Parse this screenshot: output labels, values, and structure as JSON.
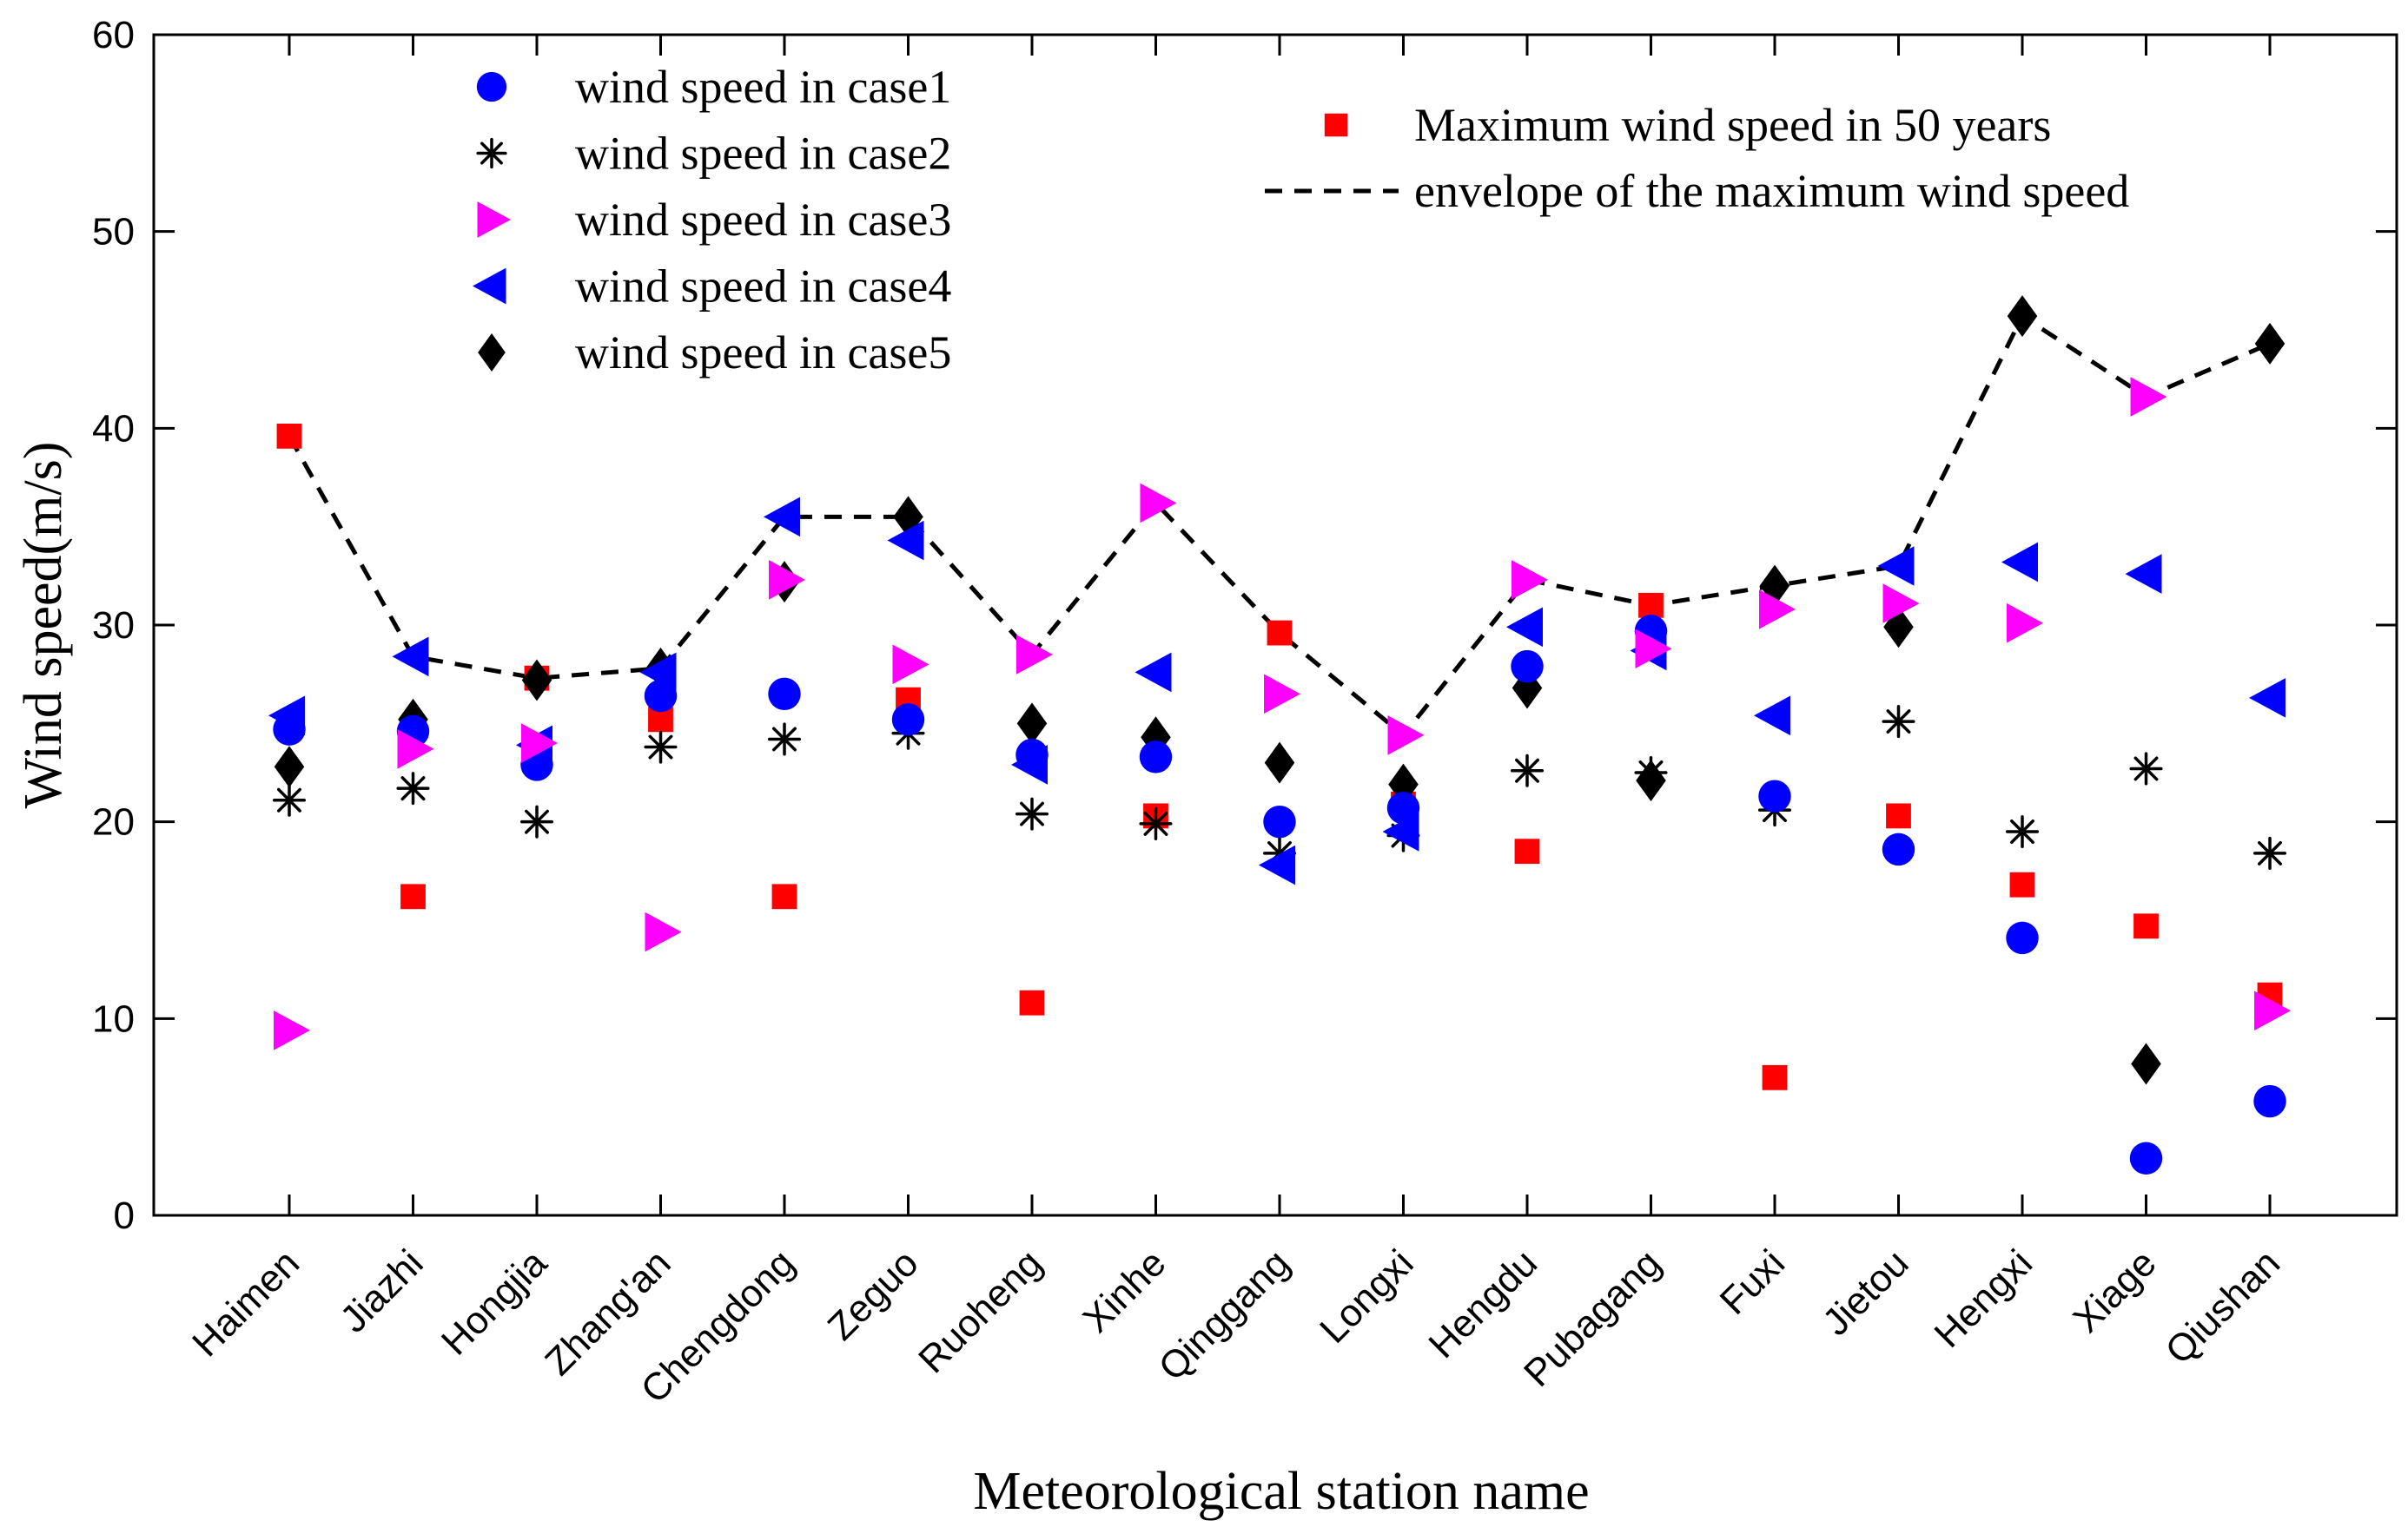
{
  "chart_data": {
    "type": "scatter",
    "xlabel": "Meteorological station name",
    "ylabel": "Wind speed(m/s)",
    "ylim": [
      0,
      60
    ],
    "yticks": [
      0,
      10,
      20,
      30,
      40,
      50,
      60
    ],
    "grid": false,
    "categories": [
      "Haimen",
      "Jiazhi",
      "Hongjia",
      "Zhang'an",
      "Chengdong",
      "Zeguo",
      "Ruoheng",
      "Xinhe",
      "Qinggang",
      "Longxi",
      "Hengdu",
      "Pubagang",
      "Fuxi",
      "Jietou",
      "Hengxi",
      "Xiage",
      "Qiushan"
    ],
    "series": [
      {
        "name": "wind speed in case1",
        "marker": "circle",
        "color": "#0000ff",
        "values": [
          24.7,
          24.6,
          22.9,
          26.4,
          26.5,
          25.2,
          23.4,
          23.3,
          20.0,
          20.7,
          27.9,
          29.7,
          21.3,
          18.6,
          14.1,
          2.9,
          5.8
        ]
      },
      {
        "name": "wind speed in case2",
        "marker": "asterisk",
        "color": "#000000",
        "values": [
          21.1,
          21.7,
          20.0,
          23.8,
          24.2,
          24.5,
          20.4,
          19.9,
          18.4,
          19.3,
          22.6,
          22.5,
          20.6,
          25.1,
          19.5,
          22.7,
          18.4
        ]
      },
      {
        "name": "wind speed in case3",
        "marker": "triangle-right",
        "color": "#ff00ff",
        "values": [
          9.4,
          23.7,
          24.0,
          14.4,
          32.3,
          28.0,
          28.5,
          36.2,
          26.5,
          24.4,
          32.3,
          28.8,
          30.8,
          31.1,
          30.1,
          41.6,
          10.4
        ]
      },
      {
        "name": "wind speed in case4",
        "marker": "triangle-left",
        "color": "#0000ff",
        "values": [
          25.4,
          28.4,
          23.9,
          27.6,
          35.5,
          34.3,
          22.9,
          27.6,
          17.8,
          19.5,
          29.9,
          28.7,
          25.4,
          33.0,
          33.2,
          32.6,
          26.3
        ]
      },
      {
        "name": "wind speed in case5",
        "marker": "diamond",
        "color": "#000000",
        "values": [
          22.8,
          25.2,
          27.2,
          27.8,
          32.2,
          35.5,
          25.0,
          24.3,
          23.0,
          21.9,
          26.8,
          22.1,
          32.0,
          29.9,
          45.7,
          7.7,
          44.3
        ]
      },
      {
        "name": "Maximum wind speed in 50 years",
        "marker": "square",
        "color": "#ff0000",
        "values": [
          39.6,
          16.2,
          27.3,
          25.2,
          16.2,
          26.2,
          10.8,
          20.3,
          29.6,
          20.9,
          18.5,
          31.0,
          7.0,
          20.3,
          16.8,
          14.7,
          11.2
        ]
      },
      {
        "name": "envelope of the maximum wind speed",
        "marker": "line-dashed",
        "color": "#000000",
        "values": [
          39.6,
          28.4,
          27.3,
          27.8,
          35.5,
          35.5,
          28.5,
          36.2,
          29.6,
          24.4,
          32.3,
          31.0,
          32.0,
          33.0,
          45.7,
          41.6,
          44.3
        ]
      }
    ],
    "legend": [
      {
        "label": "wind speed in case1",
        "marker": "circle",
        "color": "#0000ff"
      },
      {
        "label": "wind speed in case2",
        "marker": "asterisk",
        "color": "#000000"
      },
      {
        "label": "wind speed in case3",
        "marker": "triangle-right",
        "color": "#ff00ff"
      },
      {
        "label": "wind speed in case4",
        "marker": "triangle-left",
        "color": "#0000ff"
      },
      {
        "label": "wind speed in case5",
        "marker": "diamond",
        "color": "#000000"
      },
      {
        "label": "Maximum wind speed in 50 years",
        "marker": "square",
        "color": "#ff0000"
      },
      {
        "label": "envelope of the maximum wind speed",
        "marker": "line-dashed",
        "color": "#000000"
      }
    ],
    "legend_placement": "top"
  }
}
